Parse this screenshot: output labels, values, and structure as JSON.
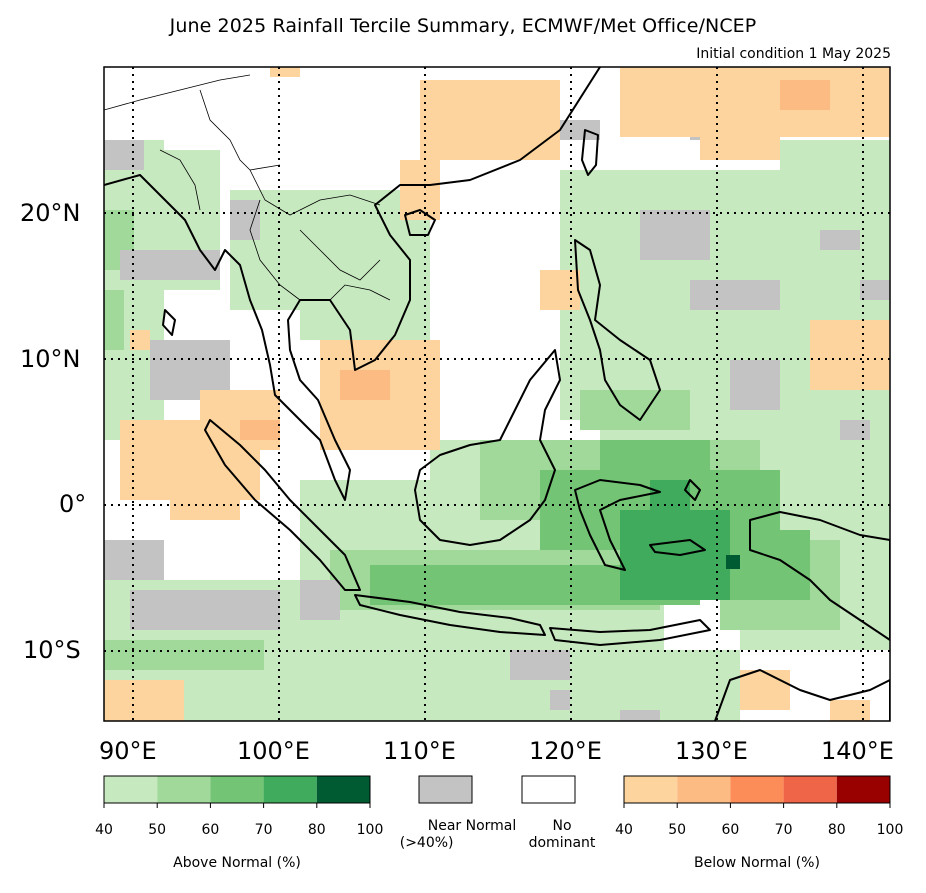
{
  "title": "June 2025 Rainfall Tercile Summary, ECMWF/Met Office/NCEP",
  "subtitle": "Initial condition 1 May 2025",
  "axes": {
    "lat_labels": [
      "20°N",
      "10°N",
      "0°",
      "10°S"
    ],
    "lon_labels": [
      "90°E",
      "100°E",
      "110°E",
      "120°E",
      "130°E",
      "140°E"
    ]
  },
  "legend": {
    "above": {
      "caption": "Above Normal (%)",
      "ticks": [
        "40",
        "50",
        "60",
        "70",
        "80",
        "100"
      ],
      "colors": [
        "#c7e9c0",
        "#a1d99b",
        "#74c476",
        "#41ab5d",
        "#005a32"
      ]
    },
    "near_normal": {
      "caption_line1": "Near Normal",
      "caption_line2": "(>40%)",
      "color": "#c3c3c3"
    },
    "no_dominant": {
      "caption_line1": "No",
      "caption_line2": "dominant",
      "color": "#ffffff"
    },
    "below": {
      "caption": "Below Normal (%)",
      "ticks": [
        "40",
        "50",
        "60",
        "70",
        "80",
        "100"
      ],
      "colors": [
        "#fdd49e",
        "#fdbb84",
        "#fc8d59",
        "#ef6548",
        "#990000"
      ]
    }
  },
  "map_colors": {
    "above_40": "#c7e9c0",
    "above_50": "#a1d99b",
    "above_60": "#74c476",
    "above_70": "#41ab5d",
    "above_80": "#005a32",
    "near": "#c3c3c3",
    "below_40": "#fdd49e",
    "below_50": "#fdbb84"
  }
}
